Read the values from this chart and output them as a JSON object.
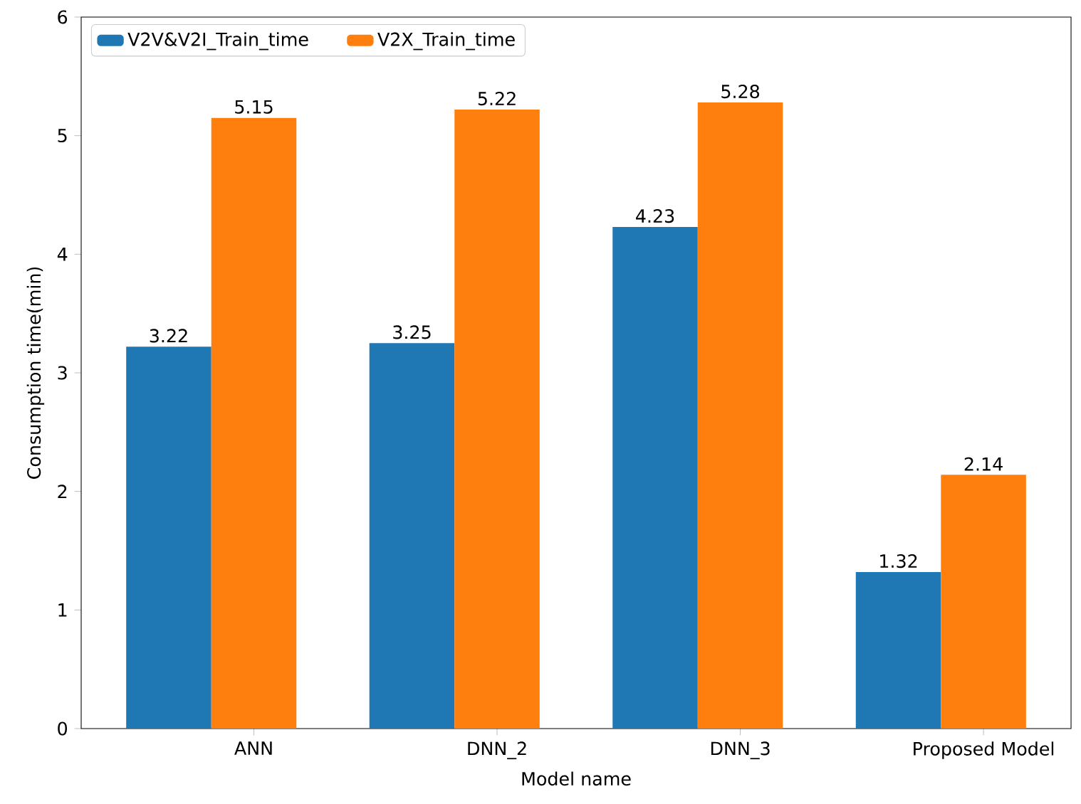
{
  "chart_data": {
    "type": "bar",
    "xlabel": "Model name",
    "ylabel": "Consumption time(min)",
    "categories": [
      "ANN",
      "DNN_2",
      "DNN_3",
      "Proposed Model"
    ],
    "series": [
      {
        "name": "V2V&V2I_Train_time",
        "color": "#1f77b4",
        "values": [
          3.22,
          3.25,
          4.23,
          1.32
        ]
      },
      {
        "name": "V2X_Train_time",
        "color": "#ff7f0e",
        "values": [
          5.15,
          5.22,
          5.28,
          2.14
        ]
      }
    ],
    "ylim": [
      0,
      6
    ],
    "yticks": [
      0,
      1,
      2,
      3,
      4,
      5,
      6
    ],
    "data_labels": true,
    "legend": "top left",
    "grid": false
  }
}
